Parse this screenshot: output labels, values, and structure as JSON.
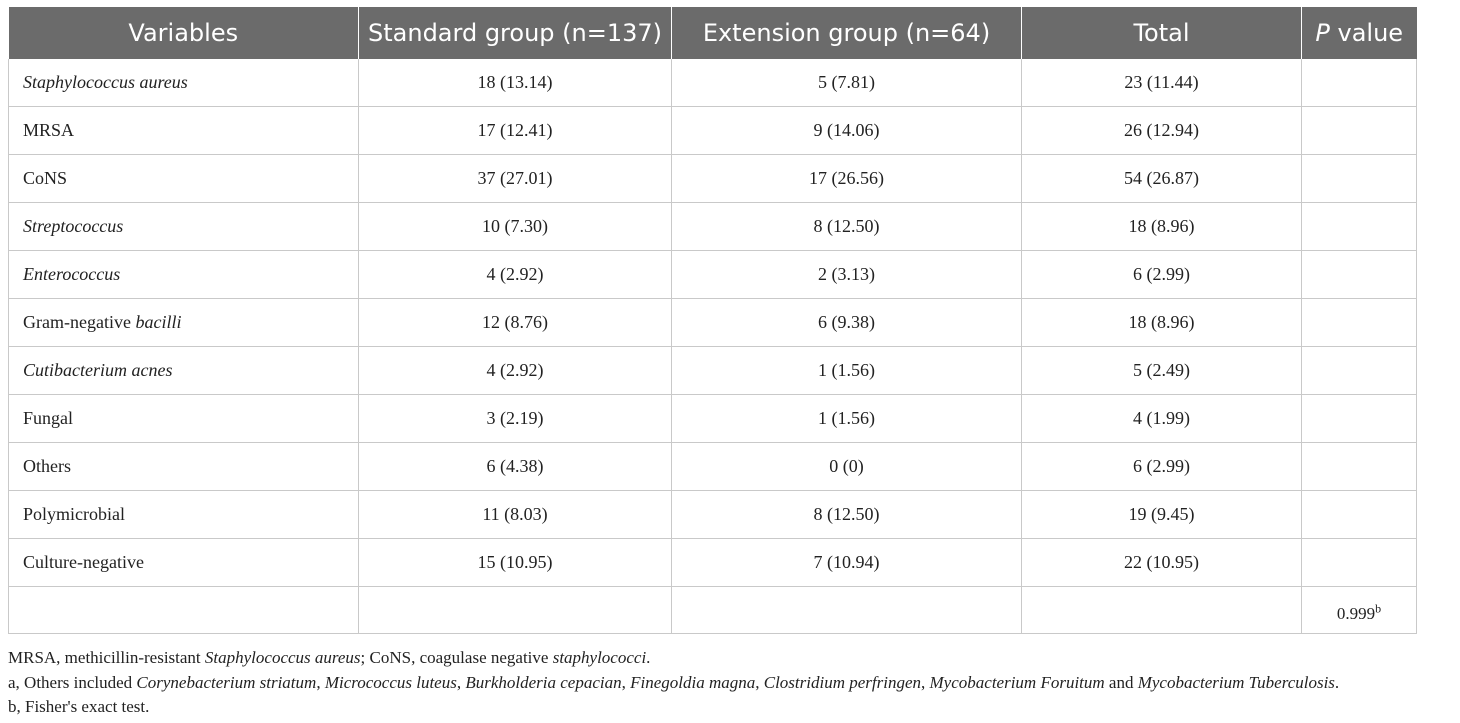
{
  "table": {
    "headers": {
      "variables": "Variables",
      "standard": "Standard group (n=137)",
      "extension": "Extension group (n=64)",
      "total": "Total",
      "p_italic": "P",
      "p_rest": " value"
    },
    "rows": [
      {
        "label_a": "Staphylococcus aureus",
        "label_b": "",
        "standard": "18 (13.14)",
        "extension": "5 (7.81)",
        "total": "23 (11.44)"
      },
      {
        "label_a": "MRSA",
        "label_b": "",
        "standard": "17 (12.41)",
        "extension": "9 (14.06)",
        "total": "26 (12.94)"
      },
      {
        "label_a": "CoNS",
        "label_b": "",
        "standard": "37 (27.01)",
        "extension": "17 (26.56)",
        "total": "54 (26.87)"
      },
      {
        "label_a": "Streptococcus",
        "label_b": "",
        "standard": "10 (7.30)",
        "extension": "8 (12.50)",
        "total": "18 (8.96)"
      },
      {
        "label_a": "Enterococcus",
        "label_b": "",
        "standard": "4 (2.92)",
        "extension": "2 (3.13)",
        "total": "6 (2.99)"
      },
      {
        "label_a": "Gram-negative ",
        "label_b": "bacilli",
        "standard": "12 (8.76)",
        "extension": "6 (9.38)",
        "total": "18 (8.96)"
      },
      {
        "label_a": "Cutibacterium acnes",
        "label_b": "",
        "standard": "4 (2.92)",
        "extension": "1 (1.56)",
        "total": "5 (2.49)"
      },
      {
        "label_a": "Fungal",
        "label_b": "",
        "standard": "3 (2.19)",
        "extension": "1 (1.56)",
        "total": "4 (1.99)"
      },
      {
        "label_a": "Others",
        "label_b": "",
        "standard": "6 (4.38)",
        "extension": "0 (0)",
        "total": "6 (2.99)"
      },
      {
        "label_a": "Polymicrobial",
        "label_b": "",
        "standard": "11 (8.03)",
        "extension": "8 (12.50)",
        "total": "19 (9.45)"
      },
      {
        "label_a": "Culture-negative",
        "label_b": "",
        "standard": "15 (10.95)",
        "extension": "7 (10.94)",
        "total": "22 (10.95)"
      }
    ],
    "p_value": "0.999",
    "p_value_sup": "b"
  },
  "notes": {
    "line1": {
      "a": "MRSA, methicillin-resistant ",
      "b": "Staphylococcus aureus",
      "c": "; CoNS, coagulase negative ",
      "d": "staphylococci",
      "e": "."
    },
    "line2": {
      "a": "a, Others included ",
      "b": "Corynebacterium striatum",
      "c": ", ",
      "d": "Micrococcus luteus",
      "e": ", ",
      "f": "Burkholderia cepacian",
      "g": ", ",
      "h": "Finegoldia magna",
      "i": ", ",
      "j": "Clostridium perfringen",
      "k": ", ",
      "l": "Mycobacterium Foruitum",
      "m": " and ",
      "n": "Mycobacterium Tuberculosis",
      "o": "."
    },
    "line3": "b, Fisher's exact test."
  }
}
